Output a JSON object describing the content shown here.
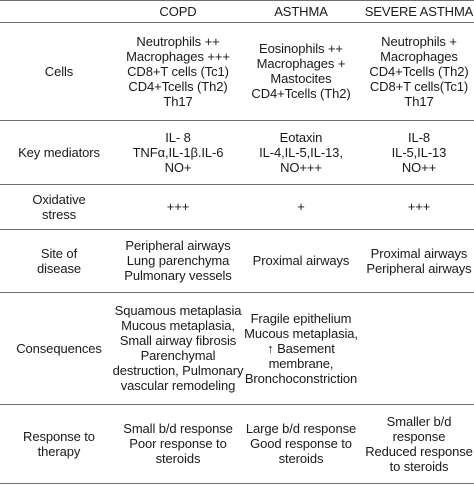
{
  "header": [
    "",
    "COPD",
    "ASTHMA",
    "SEVERE ASTHMA"
  ],
  "rows": [
    {
      "label": [
        "Cells"
      ],
      "copd": [
        "Neutrophils ++",
        "Macrophages +++",
        "CD8+T cells (Tc1)",
        "CD4+Tcells (Th2)",
        "Th17"
      ],
      "asthma": [
        "Eosinophils ++",
        "Macrophages +",
        "Mastocites",
        "CD4+Tcells (Th2)"
      ],
      "severe": [
        "Neutrophils +",
        "Macrophages",
        "CD4+Tcells (Th2)",
        "CD8+T cells(Tc1)",
        "Th17"
      ]
    },
    {
      "label": [
        "Key mediators"
      ],
      "copd": [
        "IL- 8",
        "TNFα,IL-1β.IL-6",
        "NO+"
      ],
      "asthma": [
        "Eotaxin",
        "IL-4,IL-5,IL-13,",
        "NO+++"
      ],
      "severe": [
        "IL-8",
        "IL-5,IL-13",
        "NO++"
      ]
    },
    {
      "label": [
        "Oxidative",
        "stress"
      ],
      "copd": [
        "+++"
      ],
      "asthma": [
        "+"
      ],
      "severe": [
        "+++"
      ]
    },
    {
      "label": [
        "Site of",
        "disease"
      ],
      "copd": [
        "Peripheral airways",
        "Lung parenchyma",
        "Pulmonary vessels"
      ],
      "asthma": [
        "Proximal airways"
      ],
      "severe": [
        "Proximal airways",
        "Peripheral airways"
      ]
    },
    {
      "label": [
        "Consequences"
      ],
      "copd": [
        "Squamous metaplasia",
        "Mucous metaplasia,",
        "Small airway fibrosis",
        "Parenchymal",
        "destruction, Pulmonary",
        "vascular remodeling"
      ],
      "asthma": [
        "Fragile epithelium",
        "Mucous metaplasia,",
        "↑ Basement",
        "membrane,",
        "Bronchoconstriction"
      ],
      "severe": []
    },
    {
      "label": [
        "Response to",
        "therapy"
      ],
      "copd": [
        "Small b/d response",
        "Poor response to",
        "steroids"
      ],
      "asthma": [
        "Large b/d response",
        "Good response to",
        "steroids"
      ],
      "severe": [
        "Smaller b/d",
        "response",
        "Reduced response",
        "to steroids"
      ]
    }
  ]
}
